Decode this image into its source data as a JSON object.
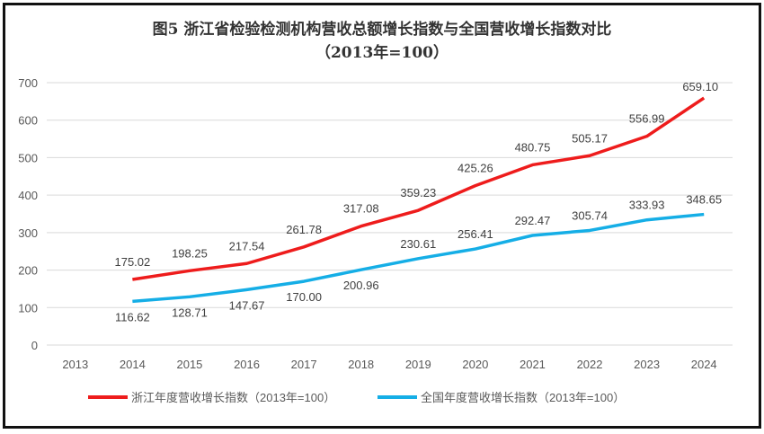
{
  "chart_data": {
    "type": "line",
    "title": "图5  浙江省检验检测机构营收总额增长指数与全国营收增长指数对比",
    "subtitle": "（2013年=100）",
    "xlabel": "",
    "ylabel": "",
    "categories": [
      "2013",
      "2014",
      "2015",
      "2016",
      "2017",
      "2018",
      "2019",
      "2020",
      "2021",
      "2022",
      "2023",
      "2024"
    ],
    "ylim": [
      0,
      700
    ],
    "yticks": [
      0,
      100,
      200,
      300,
      400,
      500,
      600,
      700
    ],
    "grid": true,
    "legend_position": "bottom",
    "series": [
      {
        "name": "浙江年度营收增长指数（2013年=100）",
        "color": "#ee1c1c",
        "values": [
          null,
          175.02,
          198.25,
          217.54,
          261.78,
          317.08,
          359.23,
          425.26,
          480.75,
          505.17,
          556.99,
          659.1
        ],
        "labels": [
          "",
          "175.02",
          "198.25",
          "217.54",
          "261.78",
          "317.08",
          "359.23",
          "425.26",
          "480.75",
          "505.17",
          "556.99",
          "659.10"
        ]
      },
      {
        "name": "全国年度营收增长指数（2013年=100）",
        "color": "#15aee6",
        "values": [
          null,
          116.62,
          128.71,
          147.67,
          170.0,
          200.96,
          230.61,
          256.41,
          292.47,
          305.74,
          333.93,
          348.65
        ],
        "labels": [
          "",
          "116.62",
          "128.71",
          "147.67",
          "170.00",
          "200.96",
          "230.61",
          "256.41",
          "292.47",
          "305.74",
          "333.93",
          "348.65"
        ]
      }
    ]
  }
}
